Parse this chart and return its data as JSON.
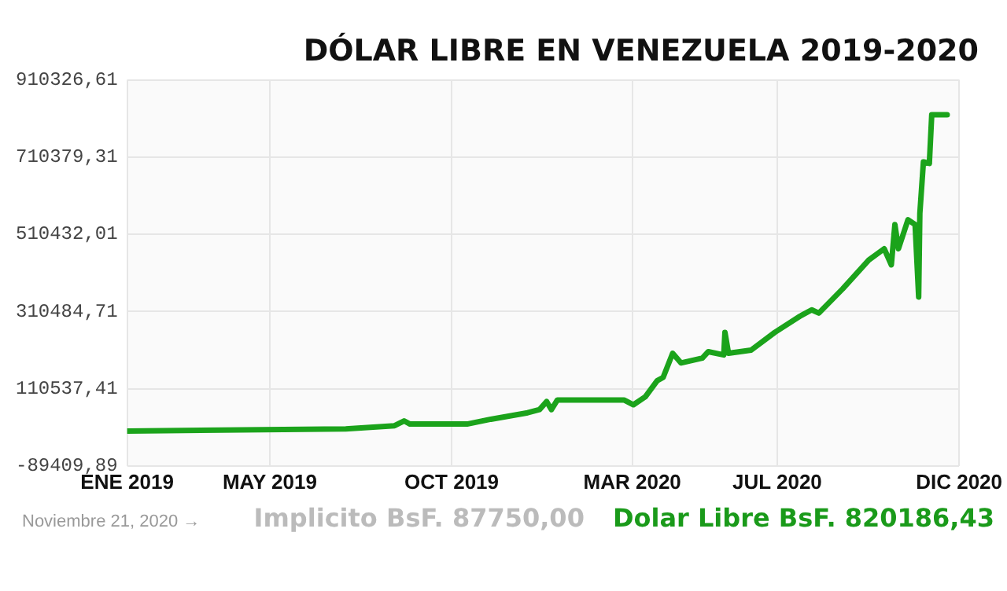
{
  "chart_data": {
    "type": "line",
    "title": "DÓLAR LIBRE EN VENEZUELA 2019-2020",
    "x": [
      "2019-01-01",
      "2019-07-04",
      "2019-08-14",
      "2019-08-22",
      "2019-08-27",
      "2019-10-14",
      "2019-11-03",
      "2019-12-04",
      "2019-12-14",
      "2019-12-20",
      "2019-12-24",
      "2019-12-29",
      "2020-02-23",
      "2020-03-02",
      "2020-03-12",
      "2020-03-22",
      "2020-03-27",
      "2020-04-04",
      "2020-04-11",
      "2020-04-29",
      "2020-05-04",
      "2020-05-17",
      "2020-05-18",
      "2020-05-21",
      "2020-06-09",
      "2020-06-29",
      "2020-07-20",
      "2020-07-30",
      "2020-08-05",
      "2020-08-25",
      "2020-09-16",
      "2020-09-29",
      "2020-10-05",
      "2020-10-08",
      "2020-10-11",
      "2020-10-19",
      "2020-10-25",
      "2020-10-28",
      "2020-10-29",
      "2020-11-01",
      "2020-11-06",
      "2020-11-08",
      "2020-11-21"
    ],
    "series": [
      {
        "color": "#1ba31b",
        "values": [
          1000,
          6400,
          14700,
          27200,
          18900,
          18900,
          31400,
          48100,
          56400,
          77200,
          56400,
          81400,
          81400,
          68900,
          89700,
          131400,
          139700,
          202200,
          177200,
          189700,
          206400,
          198000,
          256400,
          202200,
          210500,
          256400,
          298000,
          314700,
          306300,
          368800,
          443800,
          473000,
          431300,
          535500,
          473000,
          548000,
          535500,
          348000,
          564700,
          698000,
          693800,
          820000,
          820000
        ]
      }
    ],
    "xlim": [
      "2019-01-01",
      "2020-12-01"
    ],
    "xticks": [
      {
        "value": "2019-01-01",
        "label": "ENE 2019"
      },
      {
        "value": "2019-05-01",
        "label": "MAY 2019"
      },
      {
        "value": "2019-10-01",
        "label": "OCT 2019"
      },
      {
        "value": "2020-03-01",
        "label": "MAR 2020"
      },
      {
        "value": "2020-07-01",
        "label": "JUL 2020"
      },
      {
        "value": "2020-12-01",
        "label": "DIC 2020"
      }
    ],
    "ylim": [
      -89409.89,
      910326.61
    ],
    "yticks": [
      {
        "value": -89409.89,
        "label": "-89409,89"
      },
      {
        "value": 110537.41,
        "label": "110537,41"
      },
      {
        "value": 310484.71,
        "label": "310484,71"
      },
      {
        "value": 510432.01,
        "label": "510432,01"
      },
      {
        "value": 710379.31,
        "label": "710379,31"
      },
      {
        "value": 910326.61,
        "label": "910326,61"
      }
    ],
    "grid": true,
    "marker": "none",
    "line_style": "solid",
    "legend": false,
    "annotations": [
      "Noviembre 21, 2020 →",
      "Implicito BsF. 87750,00",
      "Dolar Libre BsF. 820186,43"
    ]
  }
}
